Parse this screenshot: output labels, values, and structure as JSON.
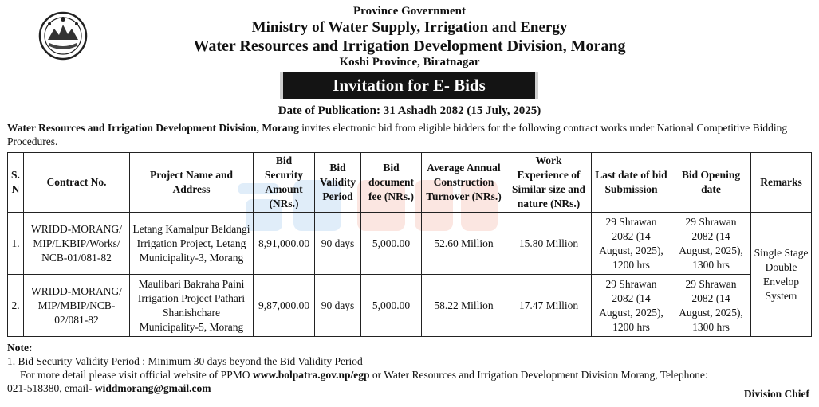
{
  "header": {
    "line1": "Province Government",
    "line2": "Ministry of Water Supply, Irrigation and Energy",
    "line3": "Water Resources and Irrigation Development Division, Morang",
    "line4": "Koshi Province, Biratnagar"
  },
  "emblem_icon": "nepal-emblem-icon",
  "banner": "Invitation for E- Bids",
  "publication": "Date of Publication: 31 Ashadh 2082 (15 July, 2025)",
  "intro": {
    "bold": "Water Resources and Irrigation Development Division, Morang",
    "rest": " invites electronic bid from eligible bidders for the following contract works under National Competitive Bidding Procedures."
  },
  "table": {
    "headers": [
      "S. N",
      "Contract No.",
      "Project Name and Address",
      "Bid Security Amount (NRs.)",
      "Bid Validity Period",
      "Bid document fee (NRs.)",
      "Average Annual Construction Turnover (NRs.)",
      "Work Experience of Similar size and nature (NRs.)",
      "Last date of bid Submission",
      "Bid Opening date",
      "Remarks"
    ],
    "rows": [
      {
        "sn": "1.",
        "contract": "WRIDD-MORANG/ MIP/LKBIP/Works/ NCB-01/081-82",
        "project": "Letang Kamalpur Beldangi Irrigation Project, Letang Municipality-3, Morang",
        "security": "8,91,000.00",
        "validity": "90 days",
        "fee": "5,000.00",
        "turnover": "52.60 Million",
        "experience": "15.80 Million",
        "submission": "29 Shrawan 2082 (14 August, 2025), 1200 hrs",
        "opening": "29 Shrawan 2082 (14 August, 2025), 1300 hrs"
      },
      {
        "sn": "2.",
        "contract": "WRIDD-MORANG/ MIP/MBIP/NCB-02/081-82",
        "project": "Maulibari Bakraha Paini Irrigation Project Pathari Shanishchare Municipality-5, Morang",
        "security": "9,87,000.00",
        "validity": "90 days",
        "fee": "5,000.00",
        "turnover": "58.22 Million",
        "experience": "17.47 Million",
        "submission": "29 Shrawan 2082 (14 August, 2025), 1200 hrs",
        "opening": "29 Shrawan 2082 (14 August, 2025), 1300 hrs"
      }
    ],
    "remarks": "Single Stage Double Envelop System"
  },
  "watermark_icon": "thekka-bazar-watermark-icon",
  "note": {
    "title": "Note:",
    "item1": "1.  Bid Security Validity Period : Minimum 30 days beyond the Bid Validity Period",
    "line2_pre": "For more detail please visit official website of PPMO ",
    "line2_url": "www.bolpatra.gov.np/egp",
    "line2_post": " or  Water Resources and Irrigation Development Division Morang, Telephone:",
    "line3_pre": "021-518380, email- ",
    "line3_email": "widdmorang@gmail.com"
  },
  "signature": "Division Chief"
}
